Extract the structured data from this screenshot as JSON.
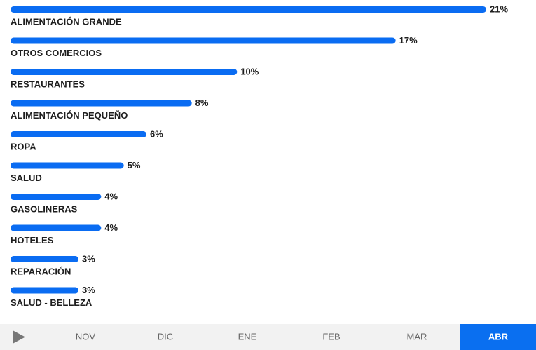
{
  "chart_data": {
    "type": "hbar",
    "categories": [
      "ALIMENTACIÓN GRANDE",
      "OTROS COMERCIOS",
      "RESTAURANTES",
      "ALIMENTACIÓN PEQUEÑO",
      "ROPA",
      "SALUD",
      "GASOLINERAS",
      "HOTELES",
      "REPARACIÓN",
      "SALUD - BELLEZA"
    ],
    "values": [
      21,
      17,
      10,
      8,
      6,
      5,
      4,
      4,
      3,
      3
    ],
    "value_labels": [
      "21%",
      "17%",
      "10%",
      "8%",
      "6%",
      "5%",
      "4%",
      "4%",
      "3%",
      "3%"
    ],
    "color": "#0a6cf2"
  },
  "timeline": {
    "months": [
      "NOV",
      "DIC",
      "ENE",
      "FEB",
      "MAR",
      "ABR"
    ]
  }
}
